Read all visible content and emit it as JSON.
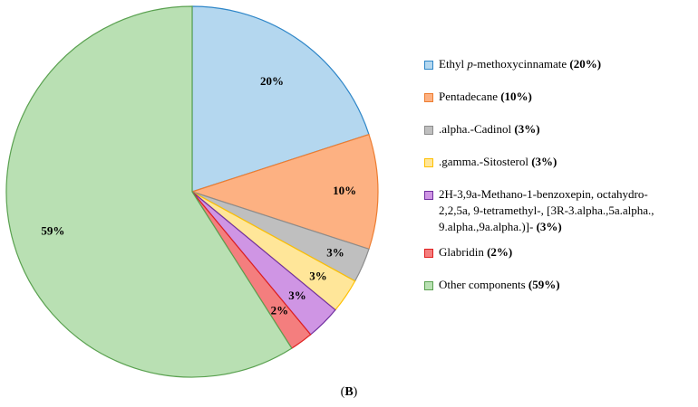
{
  "chart_data": {
    "type": "pie",
    "categories": [
      "Ethyl p-methoxycinnamate",
      "Pentadecane",
      ".alpha.-Cadinol",
      ".gamma.-Sitosterol",
      "2H-3,9a-Methano-1-benzoxepin, octahydro-2,2,5a, 9-tetramethyl-, [3R-3.alpha.,5a.alpha., 9.alpha.,9a.alpha.)]-",
      "Glabridin",
      "Other components"
    ],
    "values": [
      20,
      10,
      3,
      3,
      3,
      2,
      59
    ],
    "data_labels": [
      "20%",
      "10%",
      "3%",
      "3%",
      "3%",
      "2%",
      "59%"
    ],
    "colors": [
      "#b4d7ef",
      "#fdb182",
      "#bfbfbf",
      "#ffe699",
      "#cf95e4",
      "#f47e7e",
      "#b9e0b3"
    ],
    "stroke_colors": [
      "#2e86c8",
      "#ed7d31",
      "#8c8c8c",
      "#ffc000",
      "#7030a0",
      "#e02020",
      "#5aa150"
    ],
    "legend_position": "right",
    "title": ""
  },
  "legend": [
    {
      "pre": "Ethyl ",
      "italic": "p",
      "post": "-methoxycinnamate",
      "pct": "(20%)"
    },
    {
      "pre": "Pentadecane",
      "italic": "",
      "post": "",
      "pct": "(10%)"
    },
    {
      "pre": ".alpha.-Cadinol",
      "italic": "",
      "post": "",
      "pct": "(3%)"
    },
    {
      "pre": ".gamma.-Sitosterol",
      "italic": "",
      "post": "",
      "pct": "(3%)"
    },
    {
      "lines": [
        "2H-3,9a-Methano-1-benzoxepin, octahydro-",
        "2,2,5a, 9-tetramethyl-, [3R-3.alpha.,5a.alpha.,",
        "9.alpha.,9a.alpha.)]- "
      ],
      "pct": "(3%)"
    },
    {
      "pre": "Glabridin",
      "italic": "",
      "post": "",
      "pct": "(2%)"
    },
    {
      "pre": "Other components",
      "italic": "",
      "post": "",
      "pct": "(59%)"
    }
  ],
  "caption": {
    "open": "(",
    "letter": "B",
    "close": ")"
  }
}
